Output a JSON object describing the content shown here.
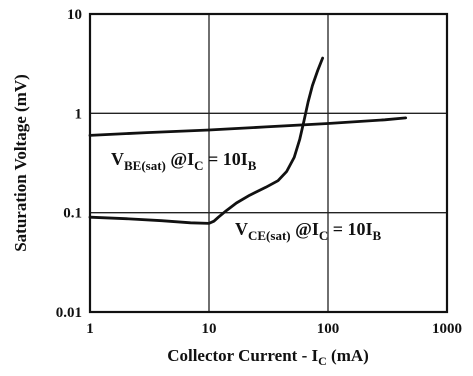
{
  "chart_data": {
    "type": "line",
    "xscale": "log",
    "yscale": "log",
    "xlim": [
      1,
      1000
    ],
    "ylim": [
      0.01,
      10
    ],
    "grid": true,
    "xlabel": "Collector Current - I",
    "xlabel_sub": "C",
    "xlabel_unit": " (mA)",
    "ylabel": "Saturation Voltage (mV)",
    "x_ticks": [
      "1",
      "10",
      "100",
      "1000"
    ],
    "y_ticks": [
      "0.01",
      "0.1",
      "1",
      "10"
    ],
    "series": [
      {
        "id": "vbe",
        "annotation": {
          "v": "V",
          "sub1": "BE(sat)",
          "at": " @I",
          "sub2": "C",
          "eq": " = 10I",
          "sub3": "B"
        },
        "x": [
          1,
          3,
          10,
          30,
          100,
          300,
          450
        ],
        "y": [
          0.6,
          0.64,
          0.68,
          0.73,
          0.79,
          0.86,
          0.9
        ]
      },
      {
        "id": "vce",
        "annotation": {
          "v": "V",
          "sub1": "CE(sat)",
          "at": " @I",
          "sub2": "C",
          "eq": " = 10I",
          "sub3": "B"
        },
        "x": [
          1,
          2,
          4,
          7,
          10,
          11,
          12,
          14,
          17,
          22,
          30,
          38,
          45,
          52,
          58,
          63,
          68,
          74,
          82,
          90
        ],
        "y": [
          0.09,
          0.087,
          0.083,
          0.079,
          0.078,
          0.082,
          0.09,
          0.105,
          0.125,
          0.15,
          0.18,
          0.21,
          0.26,
          0.36,
          0.55,
          0.85,
          1.3,
          1.9,
          2.7,
          3.6
        ]
      }
    ]
  }
}
